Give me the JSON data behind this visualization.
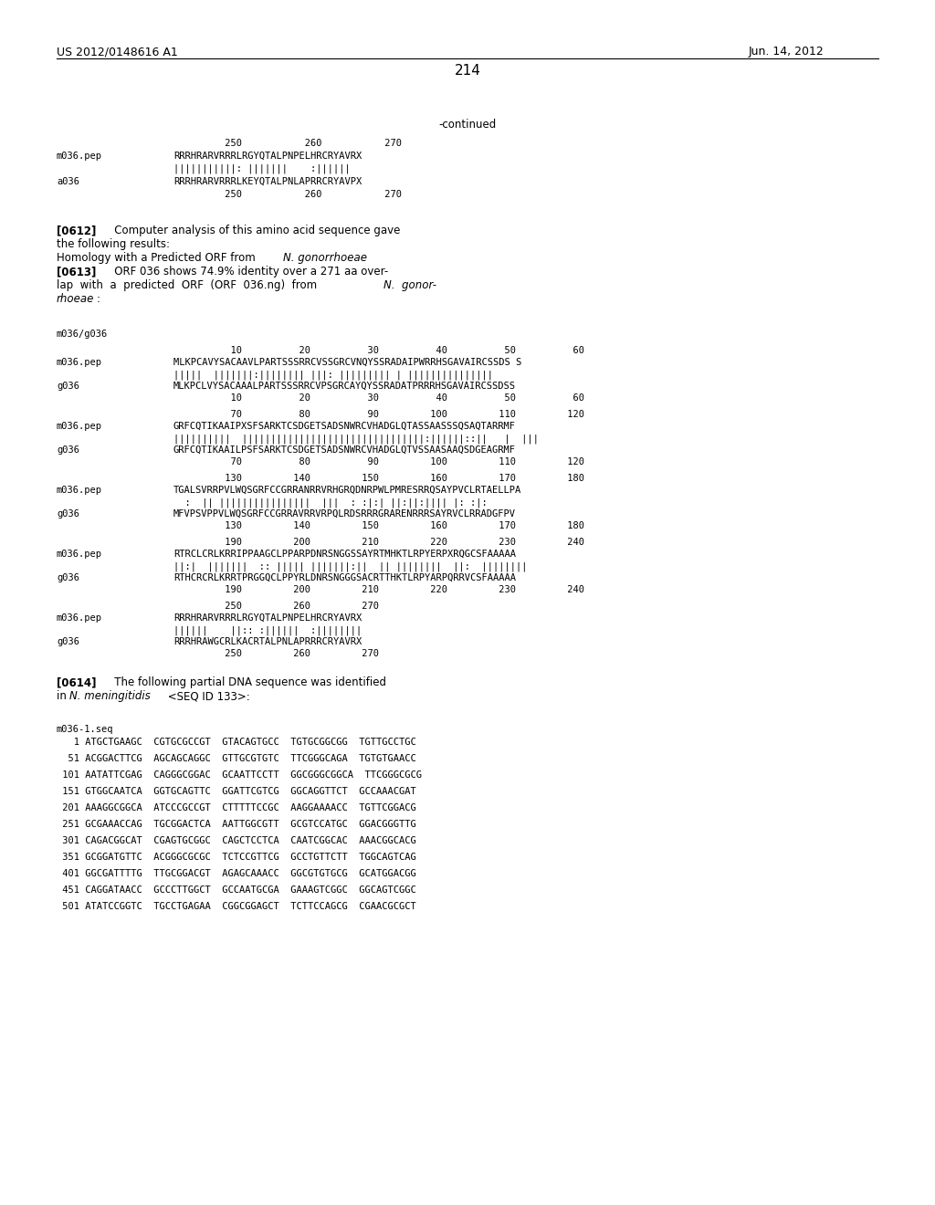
{
  "header_left": "US 2012/0148616 A1",
  "header_right": "Jun. 14, 2012",
  "page_number": "214",
  "background_color": "#ffffff",
  "text_color": "#000000",
  "continued_label": "-continued",
  "top_block": {
    "nums": "         250           260           270",
    "s1_lab": "m036.pep",
    "s1": "RRRHRARVRRRLRGYQTALPNPELHRCRYAVRX",
    "match": "|||||||||||: |||||||    :||||||",
    "s2_lab": "a036",
    "s2": "RRRHRARVRRRLKEYQTALPNLAPRRCRYAVPX",
    "nums_b": "         250           260           270"
  },
  "para612_lines": [
    {
      "bold": "[0612]",
      "rest": "   Computer analysis of this amino acid sequence gave"
    },
    {
      "bold": "",
      "rest": "the following results:"
    },
    {
      "bold": "",
      "rest": "Homology with a Predicted ORF from ",
      "italic": "N. gonorrhoeae"
    },
    {
      "bold": "[0613]",
      "rest": "   ORF 036 shows 74.9% identity over a 271 aa over-"
    },
    {
      "bold": "",
      "rest": "lap  with  a  predicted  ORF  (ORF  036.ng)  from  ",
      "italic2": "N.  gonor-"
    },
    {
      "bold": "",
      "rest_italic": "rhoeae",
      "rest2": ":"
    }
  ],
  "align_label": "m036/g036",
  "blocks": [
    {
      "nt": "          10          20          30          40          50          60",
      "l1": "m036.pep",
      "s1": "MLKPCAVYSACAAVLPARTSSSRRCVSSGRCVNQYSSRADAIPWRRHSGAVAIRCSSDS S",
      "m": "|||||  |||||||:|||||||| |||: ||||||||| | |||||||||||||||",
      "l2": "g036",
      "s2": "MLKPCLVYSACAAALPARTSSSRRCVPSGRCAYQYSSRADATPRRRHSGAVAIRCSSDSS",
      "nb": "          10          20          30          40          50          60"
    },
    {
      "nt": "          70          80          90         100         110         120",
      "l1": "m036.pep",
      "s1": "GRFCQTIKAAIPXSFSARKTCSDGETSADSNWRCVHADGLQTASSAASSSQSAQTARRMF",
      "m": "||||||||||  ||||||||||||||||||||||||||||||||:||||||::||   |  |||",
      "l2": "g036",
      "s2": "GRFCQTIKAAILPSFSARKTCSDGETSADSNWRCVHADGLQTVSSAASAAQSDGEAGRMF",
      "nb": "          70          80          90         100         110         120"
    },
    {
      "nt": "         130         140         150         160         170         180",
      "l1": "m036.pep",
      "s1": "TGALSVRRPVLWQSGRFCCGRRANRRVRHGRQDNRPWLPMRESRRQSAYPVCLRTAELLPA",
      "m": "  :  || ||||||||||||||||  |||  : :|:| ||:||:|||| |: :|:",
      "l2": "g036",
      "s2": "MFVPSVPPVLWQSGRFCCGRRAVRRVRPQLRDSRRRGRARENRRRSAYRVCLRRADGFPV",
      "nb": "         130         140         150         160         170         180"
    },
    {
      "nt": "         190         200         210         220         230         240",
      "l1": "m036.pep",
      "s1": "RTRCLCRLKRRIPPAAGCLPPARPDNRSNGGSSAYRTMHKTLRPYERPXRQGCSFAAAAA",
      "m": "||:|  |||||||  :: ||||| |||||||:||  || ||||||||  ||:  ||||||||",
      "l2": "g036",
      "s2": "RTHCRCRLKRRTPRGGQCLPPYRLDNRSNGGGSACRTTHKTLRPYARPQRRVCSFAAAAA",
      "nb": "         190         200         210         220         230         240"
    },
    {
      "nt": "         250         260         270",
      "l1": "m036.pep",
      "s1": "RRRHRARVRRRLRGYQTALPNPELHRCRYAVRX",
      "m": "||||||    ||:: :||||||  :||||||||",
      "l2": "g036",
      "s2": "RRRHRAWGCRLKACRTALPNLAPRRRCRYAVRX",
      "nb": "         250         260         270"
    }
  ],
  "para614_line1": "The following partial DNA sequence was identified",
  "para614_line2_a": "in ",
  "para614_line2_italic": "N. meningitidis",
  "para614_line2_b": " <SEQ ID 133>:",
  "dna_label": "m036-1.seq",
  "dna_lines": [
    "   1 ATGCTGAAGC  CGTGCGCCGT  GTACAGTGCC  TGTGCGGCGG  TGTTGCCTGC",
    "  51 ACGGACTTCG  AGCAGCAGGC  GTTGCGTGTC  TTCGGGCAGA  TGTGTGAACC",
    " 101 AATATTCGAG  CAGGGCGGAC  GCAATTCCTT  GGCGGGCGGCA  TTCGGGCGCG",
    " 151 GTGGCAATCA  GGTGCAGTTC  GGATTCGTCG  GGCAGGTTCT  GCCAAACGAT",
    " 201 AAAGGCGGCA  ATCCCGCCGT  CTTTTTCCGC  AAGGAAAACC  TGTTCGGACG",
    " 251 GCGAAACCAG  TGCGGACTCA  AATTGGCGTT  GCGTCCATGC  GGACGGGTTG",
    " 301 CAGACGGCAT  CGAGTGCGGC  CAGCTCCTCA  CAATCGGCAC  AAACGGCACG",
    " 351 GCGGATGTTC  ACGGGCGCGC  TCTCCGTTCG  GCCTGTTCTT  TGGCAGTCAG",
    " 401 GGCGATTTTG  TTGCGGACGT  AGAGCAAACC  GGCGTGTGCG  GCATGGACGG",
    " 451 CAGGATAACC  GCCCTTGGCT  GCCAATGCGA  GAAAGTCGGC  GGCAGTCGGC",
    " 501 ATATCCGGTC  TGCCTGAGAA  CGGCGGAGCT  TCTTCCAGCG  CGAACGCGCT"
  ]
}
